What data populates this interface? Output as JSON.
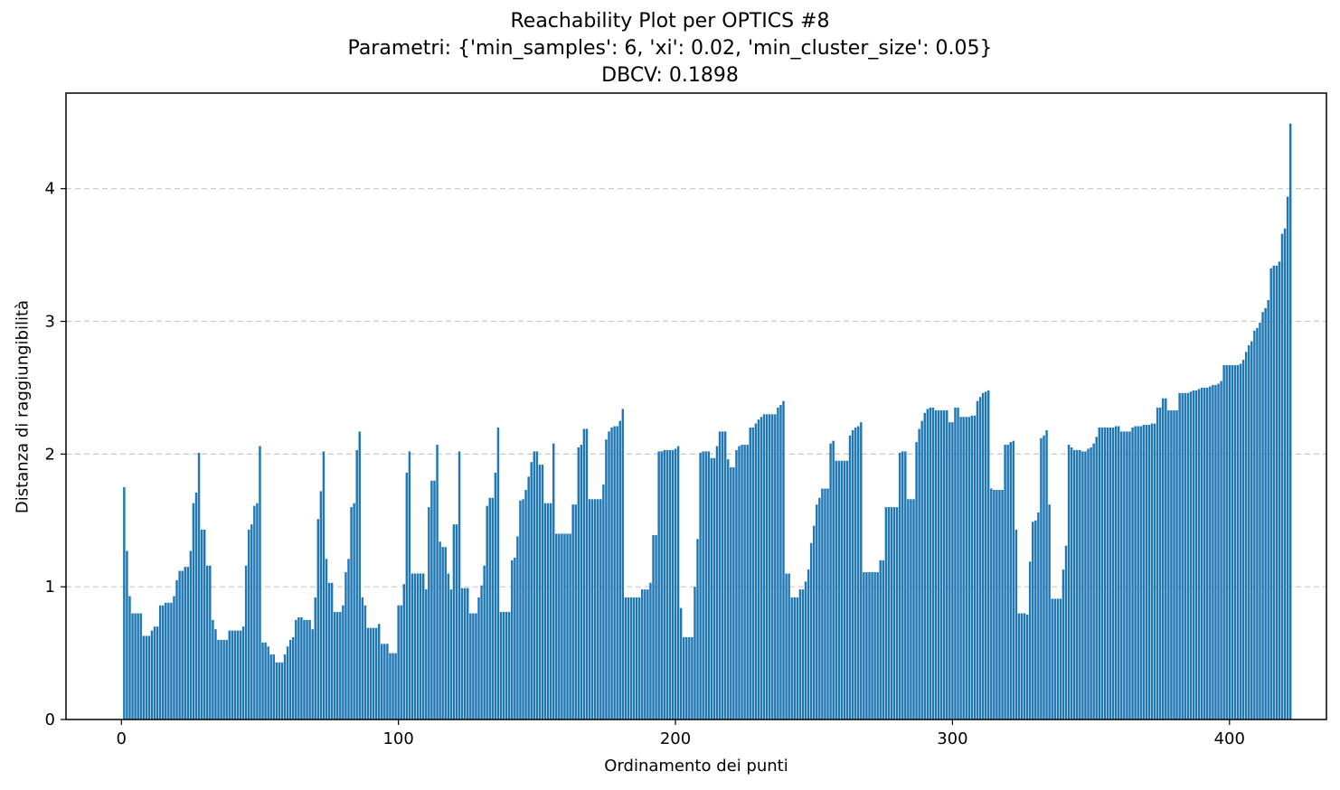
{
  "chart_data": {
    "type": "bar",
    "title": [
      "Reachability Plot per OPTICS #8",
      "Parametri: {'min_samples': 6, 'xi': 0.02, 'min_cluster_size': 0.05}",
      "DBCV: 0.1898"
    ],
    "xlabel": "Ordinamento dei punti",
    "ylabel": "Distanza di raggiungibilità",
    "xlim": [
      -20,
      435
    ],
    "ylim": [
      0,
      4.72
    ],
    "xticks": [
      0,
      100,
      200,
      300,
      400
    ],
    "yticks": [
      0,
      1,
      2,
      3,
      4
    ],
    "grid": "y, dashed",
    "bar_color": "#1f77b4",
    "series": [
      {
        "x_start": 1,
        "values": [
          1.75,
          1.27,
          0.93,
          0.8,
          0.8,
          0.8,
          0.8,
          0.63,
          0.63,
          0.63,
          0.67,
          0.7,
          0.7,
          0.86,
          0.86,
          0.88,
          0.88,
          0.88,
          0.93,
          1.05,
          1.12,
          1.12,
          1.15,
          1.15,
          1.27,
          1.63,
          1.71,
          2.01,
          1.43,
          1.43,
          1.16,
          1.16,
          0.75,
          0.68,
          0.6,
          0.6,
          0.6,
          0.6,
          0.67,
          0.67,
          0.67,
          0.67,
          0.67,
          0.7,
          1.16,
          1.43,
          1.47,
          1.61,
          1.63,
          2.06,
          0.58,
          0.58,
          0.55,
          0.49,
          0.49,
          0.43,
          0.43,
          0.43,
          0.49,
          0.55,
          0.6,
          0.62,
          0.75,
          0.77,
          0.77,
          0.75,
          0.75,
          0.75,
          0.68,
          0.92,
          1.51,
          1.72,
          2.02,
          1.21,
          1.03,
          1.03,
          0.81,
          0.81,
          0.81,
          0.86,
          1.11,
          1.21,
          1.6,
          1.63,
          2.03,
          2.17,
          0.92,
          0.86,
          0.69,
          0.69,
          0.69,
          0.69,
          0.72,
          0.57,
          0.57,
          0.57,
          0.5,
          0.5,
          0.5,
          0.86,
          0.86,
          1.02,
          1.86,
          2.02,
          1.1,
          1.1,
          1.1,
          1.1,
          1.1,
          0.98,
          1.6,
          1.8,
          1.8,
          2.07,
          1.34,
          1.3,
          1.3,
          1.1,
          0.98,
          1.47,
          1.47,
          2.02,
          0.99,
          0.99,
          0.99,
          0.8,
          0.8,
          0.8,
          0.92,
          1.01,
          1.16,
          1.61,
          1.67,
          1.67,
          1.86,
          2.2,
          0.81,
          0.81,
          0.81,
          0.81,
          1.2,
          1.22,
          1.38,
          1.65,
          1.66,
          1.73,
          1.83,
          1.94,
          2.02,
          2.02,
          1.92,
          1.92,
          1.63,
          1.63,
          1.63,
          2.08,
          1.4,
          1.4,
          1.4,
          1.4,
          1.4,
          1.4,
          1.62,
          1.62,
          2.05,
          2.07,
          2.19,
          2.19,
          1.66,
          1.66,
          1.66,
          1.66,
          1.66,
          1.77,
          2.11,
          2.17,
          2.2,
          2.21,
          2.21,
          2.25,
          2.34,
          0.92,
          0.92,
          0.92,
          0.92,
          0.92,
          0.92,
          0.98,
          0.98,
          0.98,
          1.03,
          1.39,
          1.39,
          2.02,
          2.02,
          2.03,
          2.03,
          2.03,
          2.03,
          2.04,
          2.06,
          0.84,
          0.62,
          0.62,
          0.62,
          0.62,
          1.0,
          1.36,
          2.01,
          2.02,
          2.02,
          2.02,
          1.97,
          1.97,
          2.06,
          2.17,
          2.17,
          2.17,
          1.96,
          1.9,
          1.9,
          2.03,
          2.06,
          2.07,
          2.07,
          2.07,
          2.2,
          2.2,
          2.23,
          2.26,
          2.28,
          2.3,
          2.3,
          2.3,
          2.3,
          2.3,
          2.35,
          2.37,
          2.4,
          1.1,
          1.1,
          0.92,
          0.92,
          0.92,
          0.98,
          0.98,
          1.04,
          1.13,
          1.33,
          1.46,
          1.62,
          1.67,
          1.74,
          1.74,
          1.74,
          2.08,
          2.1,
          1.95,
          1.95,
          1.95,
          1.95,
          1.95,
          2.14,
          2.18,
          2.2,
          2.21,
          2.24,
          1.11,
          1.11,
          1.11,
          1.11,
          1.11,
          1.11,
          1.2,
          1.2,
          1.6,
          1.6,
          1.6,
          1.6,
          1.6,
          2.01,
          2.02,
          2.02,
          1.66,
          1.66,
          1.66,
          2.09,
          2.19,
          2.25,
          2.31,
          2.34,
          2.35,
          2.35,
          2.33,
          2.33,
          2.33,
          2.33,
          2.33,
          2.24,
          2.24,
          2.35,
          2.35,
          2.28,
          2.28,
          2.28,
          2.28,
          2.29,
          2.29,
          2.4,
          2.43,
          2.46,
          2.47,
          2.48,
          1.74,
          1.73,
          1.73,
          1.73,
          1.73,
          2.07,
          2.07,
          2.09,
          2.1,
          1.43,
          0.8,
          0.8,
          0.8,
          0.79,
          1.19,
          1.49,
          1.5,
          1.56,
          2.12,
          2.14,
          2.18,
          1.62,
          0.91,
          0.91,
          0.91,
          0.91,
          1.13,
          1.31,
          2.07,
          2.05,
          2.03,
          2.03,
          2.03,
          2.02,
          2.02,
          2.04,
          2.05,
          2.08,
          2.13,
          2.2,
          2.2,
          2.2,
          2.2,
          2.2,
          2.2,
          2.21,
          2.21,
          2.17,
          2.17,
          2.17,
          2.17,
          2.2,
          2.21,
          2.21,
          2.21,
          2.22,
          2.22,
          2.22,
          2.23,
          2.23,
          2.35,
          2.35,
          2.42,
          2.42,
          2.33,
          2.33,
          2.33,
          2.33,
          2.46,
          2.46,
          2.46,
          2.46,
          2.47,
          2.48,
          2.48,
          2.49,
          2.5,
          2.5,
          2.5,
          2.51,
          2.52,
          2.52,
          2.53,
          2.55,
          2.67,
          2.67,
          2.67,
          2.67,
          2.67,
          2.67,
          2.68,
          2.71,
          2.77,
          2.82,
          2.85,
          2.93,
          2.95,
          2.99,
          3.07,
          3.1,
          3.16,
          3.4,
          3.42,
          3.42,
          3.45,
          3.66,
          3.7,
          3.94,
          4.49
        ]
      }
    ]
  }
}
